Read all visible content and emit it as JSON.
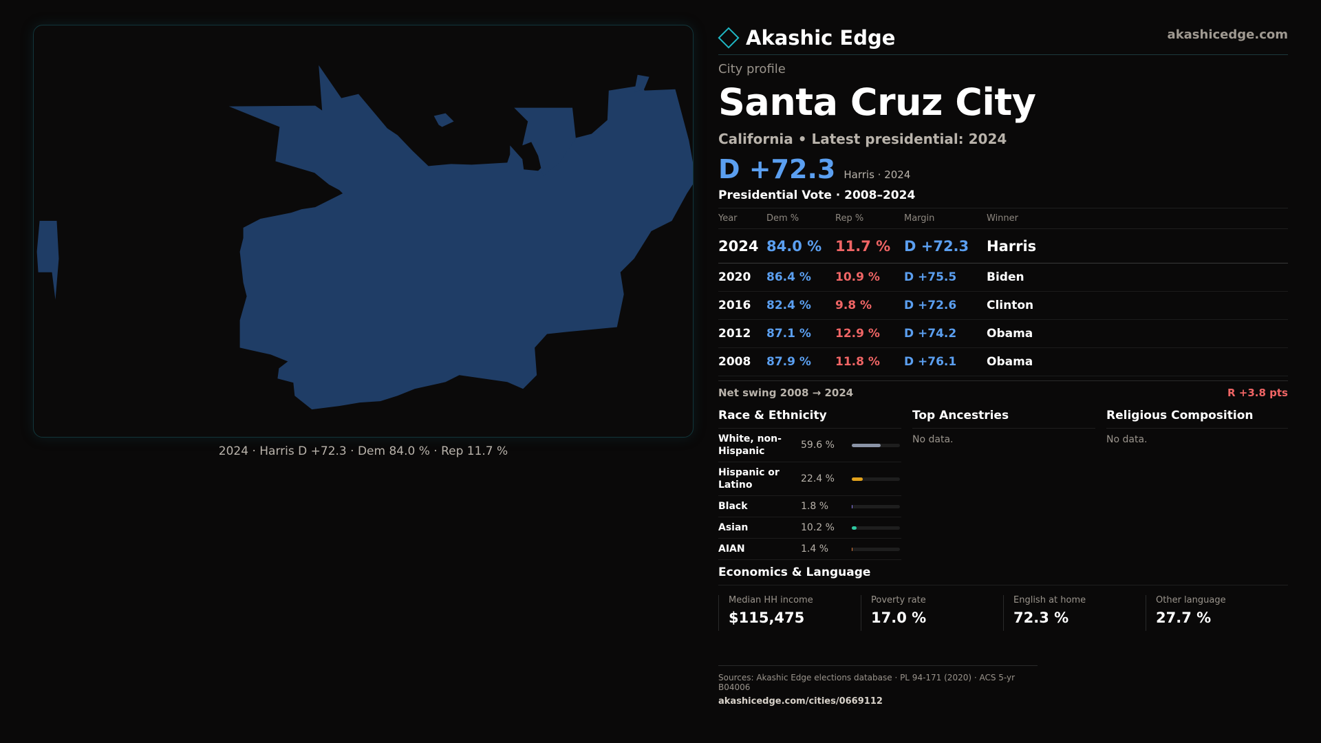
{
  "brand": {
    "name": "Akashic Edge",
    "domain": "akashicedge.com",
    "logo_icon": "diamond-outline-icon",
    "accent": "#1fb7c4"
  },
  "profile": {
    "kicker": "City profile",
    "city": "Santa Cruz City",
    "subtitle": "California • Latest presidential: 2024",
    "headline_margin": "D +72.3",
    "headline_winner": "Harris · 2024"
  },
  "map": {
    "caption": "2024 · Harris D +72.3 · Dem 84.0 % · Rep 11.7 %",
    "fill_color": "#1f3d66"
  },
  "vote": {
    "title": "Presidential Vote · 2008–2024",
    "headers": {
      "year": "Year",
      "dem": "Dem %",
      "rep": "Rep %",
      "margin": "Margin",
      "winner": "Winner"
    },
    "rows": [
      {
        "year": "2024",
        "dem": "84.0 %",
        "rep": "11.7 %",
        "margin": "D +72.3",
        "winner": "Harris"
      },
      {
        "year": "2020",
        "dem": "86.4 %",
        "rep": "10.9 %",
        "margin": "D +75.5",
        "winner": "Biden"
      },
      {
        "year": "2016",
        "dem": "82.4 %",
        "rep": "9.8 %",
        "margin": "D +72.6",
        "winner": "Clinton"
      },
      {
        "year": "2012",
        "dem": "87.1 %",
        "rep": "12.9 %",
        "margin": "D +74.2",
        "winner": "Obama"
      },
      {
        "year": "2008",
        "dem": "87.9 %",
        "rep": "11.8 %",
        "margin": "D +76.1",
        "winner": "Obama"
      }
    ],
    "swing_label": "Net swing 2008 → 2024",
    "swing_value": "R +3.8 pts",
    "colors": {
      "dem": "#5b9ff0",
      "rep": "#f06565"
    }
  },
  "race": {
    "title": "Race & Ethnicity",
    "items": [
      {
        "name": "White, non-Hispanic",
        "pct": "59.6 %",
        "share": 0.596,
        "color": "#8a93a6"
      },
      {
        "name": "Hispanic or Latino",
        "pct": "22.4 %",
        "share": 0.224,
        "color": "#e2a21c"
      },
      {
        "name": "Black",
        "pct": "1.8 %",
        "share": 0.018,
        "color": "#8b7bf0"
      },
      {
        "name": "Asian",
        "pct": "10.2 %",
        "share": 0.102,
        "color": "#2fc7a0"
      },
      {
        "name": "AIAN",
        "pct": "1.4 %",
        "share": 0.014,
        "color": "#e07a3a"
      }
    ]
  },
  "ancestries": {
    "title": "Top Ancestries",
    "empty": "No data."
  },
  "religion": {
    "title": "Religious Composition",
    "empty": "No data."
  },
  "economics": {
    "title": "Economics & Language",
    "stats": [
      {
        "label": "Median HH income",
        "value": "$115,475"
      },
      {
        "label": "Poverty rate",
        "value": "17.0 %"
      },
      {
        "label": "English at home",
        "value": "72.3 %"
      },
      {
        "label": "Other language",
        "value": "27.7 %"
      }
    ]
  },
  "footer": {
    "sources": "Sources: Akashic Edge elections database · PL 94-171 (2020) · ACS 5-yr B04006",
    "url": "akashicedge.com/cities/0669112"
  }
}
